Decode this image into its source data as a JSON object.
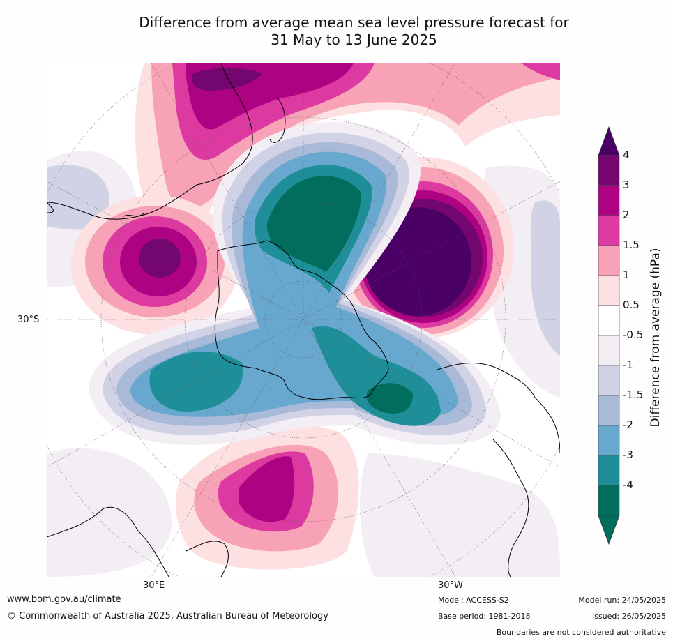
{
  "title": {
    "line1": "Difference from average mean sea level pressure forecast for",
    "line2": "31 May to 13 June 2025"
  },
  "map_labels": {
    "lat_30s": "30°S",
    "lon_30e": "30°E",
    "lon_30w": "30°W"
  },
  "legend": {
    "title": "Difference from average (hPa)",
    "bins": [
      {
        "label": "4",
        "color": "#74066f"
      },
      {
        "label": "3",
        "color": "#ad0282"
      },
      {
        "label": "2",
        "color": "#dc3aa0"
      },
      {
        "label": "1.5",
        "color": "#f8a2b8"
      },
      {
        "label": "1",
        "color": "#fde0e1"
      },
      {
        "label": "0.5",
        "color": "#ffffff"
      },
      {
        "label": "-0.5",
        "color": "#f3edf4"
      },
      {
        "label": "-1",
        "color": "#d1d2e6"
      },
      {
        "label": "-1.5",
        "color": "#a9bad8"
      },
      {
        "label": "-2",
        "color": "#68a8cf"
      },
      {
        "label": "-3",
        "color": "#1e8f98"
      },
      {
        "label": "-4",
        "color": "#016d5d"
      }
    ],
    "top_arrow_color": "#4b0066",
    "bottom_arrow_color": "#016d5d"
  },
  "footer": {
    "website": "www.bom.gov.au/climate",
    "copyright": "© Commonwealth of Australia 2025, Australian Bureau of Meteorology",
    "model": "Model: ACCESS-S2",
    "base_period": "Base period: 1981-2018",
    "model_run": "Model run: 24/05/2025",
    "issued": "Issued: 26/05/2025",
    "disclaimer": "Boundaries are not considered authoritative"
  }
}
